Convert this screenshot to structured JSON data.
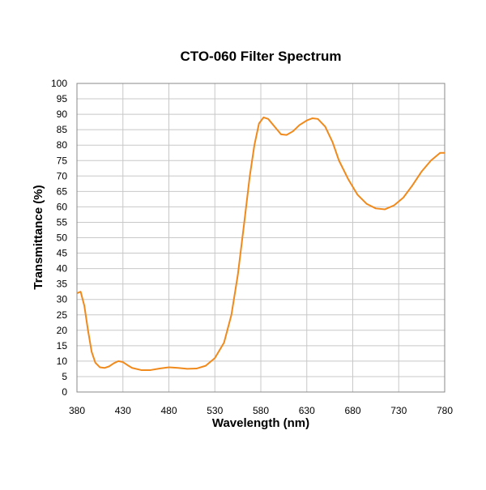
{
  "chart_data": {
    "type": "line",
    "title": "CTO-060 Filter Spectrum",
    "x_label": "Wavelength (nm)",
    "y_label": "Transmittance (%)",
    "x": [
      380,
      384,
      388,
      392,
      396,
      400,
      405,
      410,
      415,
      420,
      425,
      430,
      435,
      440,
      450,
      460,
      470,
      480,
      490,
      500,
      510,
      520,
      530,
      540,
      548,
      555,
      562,
      568,
      573,
      578,
      583,
      588,
      595,
      602,
      608,
      615,
      622,
      630,
      636,
      642,
      650,
      658,
      665,
      675,
      685,
      695,
      705,
      715,
      725,
      735,
      745,
      755,
      765,
      775,
      780
    ],
    "series": [
      {
        "name": "CTO-060",
        "color": "#f08a1c",
        "values": [
          32,
          32.5,
          28,
          20,
          13,
          9.5,
          8,
          7.8,
          8.3,
          9.3,
          10,
          9.7,
          8.7,
          7.8,
          7.1,
          7.1,
          7.6,
          8,
          7.8,
          7.5,
          7.6,
          8.5,
          11,
          16,
          25,
          38,
          55,
          70,
          80,
          87,
          89,
          88.5,
          86,
          83.5,
          83.3,
          84.5,
          86.5,
          88,
          88.7,
          88.5,
          86,
          81,
          75,
          69,
          64,
          61,
          59.5,
          59.2,
          60.5,
          63,
          67,
          71.5,
          75,
          77.5,
          77.5
        ]
      }
    ],
    "xlim": [
      380,
      780
    ],
    "xticks": [
      380,
      430,
      480,
      530,
      580,
      630,
      680,
      730,
      780
    ],
    "ylim": [
      0,
      100
    ],
    "yticks": [
      0,
      5,
      10,
      15,
      20,
      25,
      30,
      35,
      40,
      45,
      50,
      55,
      60,
      65,
      70,
      75,
      80,
      85,
      90,
      95,
      100
    ],
    "grid": true
  }
}
